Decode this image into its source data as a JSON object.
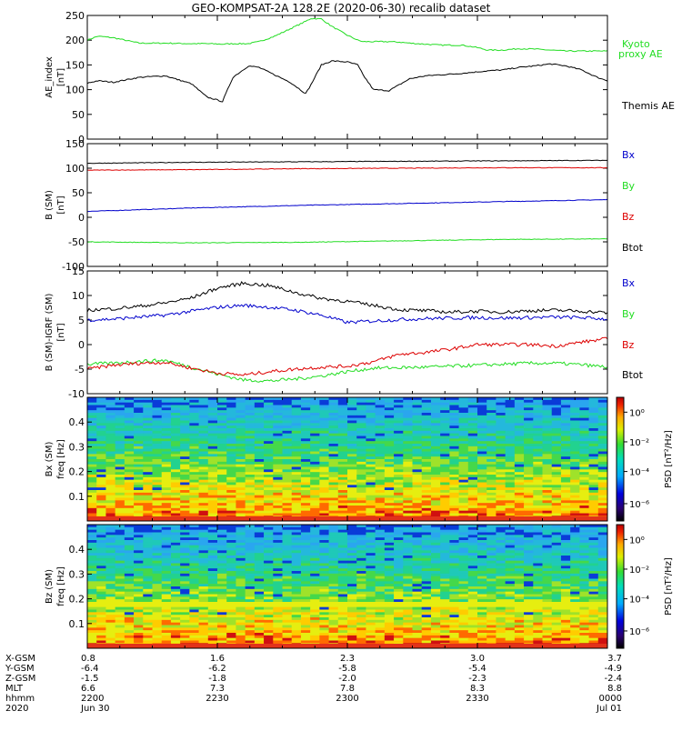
{
  "title": "GEO-KOMPSAT-2A 128.2E (2020-06-30) recalib dataset",
  "colors": {
    "black": "#000000",
    "red": "#dd0000",
    "green": "#22dd22",
    "blue": "#0000cc"
  },
  "chart_data": [
    {
      "type": "line",
      "panel": "ae",
      "ylabel": [
        "AE_index",
        "[nT]"
      ],
      "ylim": [
        0,
        250
      ],
      "yticks": [
        0,
        50,
        100,
        150,
        200,
        250
      ],
      "x": [
        0,
        0.02,
        0.05,
        0.1,
        0.15,
        0.2,
        0.23,
        0.26,
        0.28,
        0.31,
        0.33,
        0.36,
        0.39,
        0.42,
        0.43,
        0.45,
        0.47,
        0.5,
        0.52,
        0.53,
        0.55,
        0.58,
        0.6,
        0.62,
        0.65,
        0.68,
        0.72,
        0.75,
        0.77,
        0.8,
        0.83,
        0.86,
        0.89,
        0.92,
        0.95,
        0.98,
        1.0
      ],
      "series": [
        {
          "name": "Kyoto proxy AE",
          "color": "#22dd22",
          "values": [
            200,
            208,
            205,
            194,
            194,
            193,
            193,
            192,
            193,
            193,
            197,
            208,
            223,
            238,
            244,
            243,
            228,
            210,
            200,
            197,
            197,
            197,
            196,
            194,
            192,
            190,
            190,
            185,
            180,
            180,
            183,
            182,
            180,
            178,
            178,
            178,
            178
          ]
        },
        {
          "name": "Themis AE",
          "color": "#000000",
          "values": [
            113,
            118,
            115,
            125,
            128,
            112,
            85,
            76,
            125,
            148,
            145,
            130,
            115,
            92,
            110,
            150,
            158,
            156,
            150,
            130,
            100,
            98,
            110,
            122,
            128,
            130,
            133,
            136,
            138,
            140,
            145,
            148,
            152,
            148,
            140,
            125,
            118
          ]
        }
      ]
    },
    {
      "type": "line",
      "panel": "bsm",
      "ylabel": [
        "B (SM)",
        "[nT]"
      ],
      "ylim": [
        -100,
        150
      ],
      "yticks": [
        -100,
        -50,
        0,
        50,
        100,
        150
      ],
      "x": [
        0,
        0.2,
        0.4,
        0.6,
        0.8,
        1.0
      ],
      "series": [
        {
          "name": "Bx",
          "color": "#0000cc",
          "values": [
            12,
            19,
            24,
            28,
            32,
            36
          ]
        },
        {
          "name": "By",
          "color": "#22dd22",
          "values": [
            -50,
            -52,
            -51,
            -48,
            -45,
            -44
          ]
        },
        {
          "name": "Bz",
          "color": "#dd0000",
          "values": [
            96,
            97,
            99,
            100,
            101,
            101
          ]
        },
        {
          "name": "Btot",
          "color": "#000000",
          "values": [
            110,
            112,
            113,
            114,
            115,
            116
          ]
        }
      ]
    },
    {
      "type": "line",
      "panel": "bigrf",
      "ylabel": [
        "B (SM)-IGRF (SM)",
        "[nT]"
      ],
      "ylim": [
        -10,
        15
      ],
      "yticks": [
        -10,
        -5,
        0,
        5,
        10,
        15
      ],
      "x": [
        0,
        0.05,
        0.1,
        0.15,
        0.2,
        0.25,
        0.3,
        0.35,
        0.4,
        0.45,
        0.5,
        0.55,
        0.6,
        0.65,
        0.7,
        0.75,
        0.8,
        0.85,
        0.9,
        0.95,
        1.0
      ],
      "series": [
        {
          "name": "Bx",
          "color": "#0000cc",
          "values": [
            5,
            5.2,
            5.6,
            6,
            6.8,
            7.6,
            8,
            7.6,
            7,
            6,
            4.5,
            4.8,
            5.1,
            5.3,
            5.4,
            5.5,
            5.4,
            5.5,
            5.6,
            5.5,
            5.2
          ]
        },
        {
          "name": "By",
          "color": "#22dd22",
          "values": [
            -4,
            -3.8,
            -3.4,
            -3.2,
            -4.6,
            -6,
            -7.2,
            -7.4,
            -7,
            -6.4,
            -5.5,
            -4.8,
            -4.7,
            -4.6,
            -4.4,
            -4.2,
            -4.0,
            -3.8,
            -3.8,
            -4.1,
            -4.6
          ]
        },
        {
          "name": "Bz",
          "color": "#dd0000",
          "values": [
            -5,
            -4.2,
            -3.8,
            -3.6,
            -4.8,
            -5.8,
            -6.2,
            -5.5,
            -5,
            -4.6,
            -4.4,
            -3.5,
            -2,
            -1.6,
            -0.9,
            0,
            0,
            0,
            -0.3,
            0.5,
            1.2
          ]
        },
        {
          "name": "Btot",
          "color": "#000000",
          "values": [
            7,
            7.3,
            7.8,
            8.5,
            9.5,
            11.5,
            12.5,
            12,
            10.6,
            9.4,
            8.8,
            8,
            7.1,
            6.9,
            6.6,
            6.8,
            6.6,
            6.9,
            7,
            6.8,
            6.5
          ]
        }
      ]
    },
    {
      "type": "heatmap",
      "panel": "bxspec",
      "ylabel": [
        "Bx (SM)",
        "freq [Hz]"
      ],
      "yticks": [
        0.1,
        0.2,
        0.3,
        0.4
      ],
      "ylim": [
        0,
        0.5
      ],
      "colorbar": {
        "label": "PSD [nT²/Hz]",
        "ticks": [
          "10⁰",
          "10⁻²",
          "10⁻⁴",
          "10⁻⁶"
        ]
      }
    },
    {
      "type": "heatmap",
      "panel": "bzspec",
      "ylabel": [
        "Bz (SM)",
        "freq [Hz]"
      ],
      "yticks": [
        0.1,
        0.2,
        0.3,
        0.4
      ],
      "ylim": [
        0,
        0.5
      ],
      "colorbar": {
        "label": "PSD [nT²/Hz]",
        "ticks": [
          "10⁰",
          "10⁻²",
          "10⁻⁴",
          "10⁻⁶"
        ]
      }
    }
  ],
  "legends": {
    "ae": [
      "Kyoto",
      "proxy AE",
      "Themis AE"
    ],
    "bsm": [
      "Bx",
      "By",
      "Bz",
      "Btot"
    ],
    "bigrf": [
      "Bx",
      "By",
      "Bz",
      "Btot"
    ]
  },
  "ephemeris": {
    "labels": [
      "X-GSM",
      "Y-GSM",
      "Z-GSM",
      "MLT",
      "hhmm",
      "2020"
    ],
    "columns": [
      [
        "0.8",
        "-6.4",
        "-1.5",
        "6.6",
        "2200",
        "Jun 30"
      ],
      [
        "1.6",
        "-6.2",
        "-1.8",
        "7.3",
        "2230",
        ""
      ],
      [
        "2.3",
        "-5.8",
        "-2.0",
        "7.8",
        "2300",
        ""
      ],
      [
        "3.0",
        "-5.4",
        "-2.3",
        "8.3",
        "2330",
        ""
      ],
      [
        "3.7",
        "-4.9",
        "-2.4",
        "8.8",
        "0000",
        "Jul 01"
      ]
    ]
  }
}
